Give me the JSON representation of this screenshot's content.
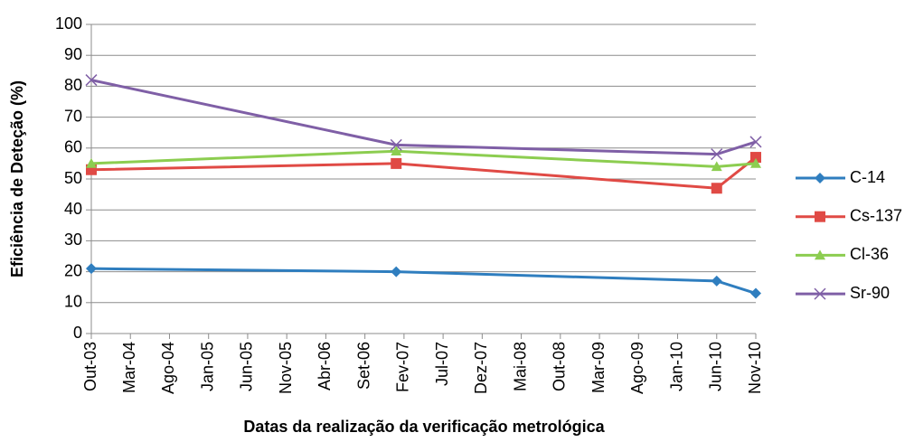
{
  "chart_data": {
    "type": "line",
    "y_label": "Eficiência de Deteção (%)",
    "x_label": "Datas da realização da verificação metrológica",
    "x": [
      "2003-10",
      "2007-01",
      "2010-06",
      "2010-11"
    ],
    "xlim": [
      "2003-10",
      "2010-11"
    ],
    "xticks": [
      {
        "value": "2003-10",
        "label": "Out-03"
      },
      {
        "value": "2004-03",
        "label": "Mar-04"
      },
      {
        "value": "2004-08",
        "label": "Ago-04"
      },
      {
        "value": "2005-01",
        "label": "Jan-05"
      },
      {
        "value": "2005-06",
        "label": "Jun-05"
      },
      {
        "value": "2005-11",
        "label": "Nov-05"
      },
      {
        "value": "2006-04",
        "label": "Abr-06"
      },
      {
        "value": "2006-09",
        "label": "Set-06"
      },
      {
        "value": "2007-02",
        "label": "Fev-07"
      },
      {
        "value": "2007-07",
        "label": "Jul-07"
      },
      {
        "value": "2007-12",
        "label": "Dez-07"
      },
      {
        "value": "2008-05",
        "label": "Mai-08"
      },
      {
        "value": "2008-10",
        "label": "Out-08"
      },
      {
        "value": "2009-03",
        "label": "Mar-09"
      },
      {
        "value": "2009-08",
        "label": "Ago-09"
      },
      {
        "value": "2010-01",
        "label": "Jan-10"
      },
      {
        "value": "2010-06",
        "label": "Jun-10"
      },
      {
        "value": "2010-11",
        "label": "Nov-10"
      }
    ],
    "ylim": [
      0,
      100
    ],
    "yticks": [
      0,
      10,
      20,
      30,
      40,
      50,
      60,
      70,
      80,
      90,
      100
    ],
    "grid": true,
    "legend": "right",
    "series": [
      {
        "name": "C-14",
        "color": "#2f7ebf",
        "marker": "diamond",
        "values": [
          21,
          20,
          17,
          13
        ]
      },
      {
        "name": "Cs-137",
        "color": "#e04a45",
        "marker": "square",
        "values": [
          53,
          55,
          47,
          57
        ]
      },
      {
        "name": "Cl-36",
        "color": "#8ccd50",
        "marker": "triangle",
        "values": [
          55,
          59,
          54,
          55
        ]
      },
      {
        "name": "Sr-90",
        "color": "#7f5fa6",
        "marker": "x",
        "values": [
          82,
          61,
          58,
          62
        ]
      }
    ]
  }
}
